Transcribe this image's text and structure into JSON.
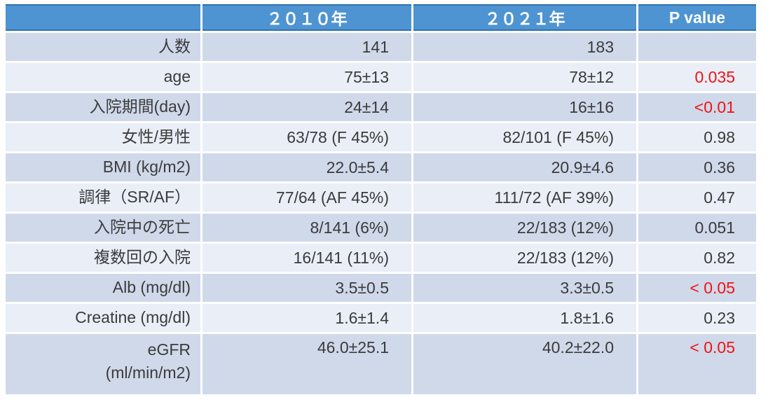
{
  "table": {
    "columns": [
      "",
      "２０１０年",
      "２０２１年",
      "P value"
    ],
    "rows": [
      {
        "label": "人数",
        "label2": "",
        "y2010": "141",
        "y2021": "183",
        "p": "",
        "p_red": false,
        "tall": false
      },
      {
        "label": "age",
        "label2": "",
        "y2010": "75±13",
        "y2021": "78±12",
        "p": "0.035",
        "p_red": true,
        "tall": false
      },
      {
        "label": "入院期間(day)",
        "label2": "",
        "y2010": "24±14",
        "y2021": "16±16",
        "p": "<0.01",
        "p_red": true,
        "tall": false
      },
      {
        "label": "女性/男性",
        "label2": "",
        "y2010": "63/78 (F 45%)",
        "y2021": "82/101 (F 45%)",
        "p": "0.98",
        "p_red": false,
        "tall": false
      },
      {
        "label": "BMI (kg/m2)",
        "label2": "",
        "y2010": "22.0±5.4",
        "y2021": "20.9±4.6",
        "p": "0.36",
        "p_red": false,
        "tall": false
      },
      {
        "label": "調律（SR/AF）",
        "label2": "",
        "y2010": "77/64 (AF 45%)",
        "y2021": "111/72 (AF 39%)",
        "p": "0.47",
        "p_red": false,
        "tall": false
      },
      {
        "label": "入院中の死亡",
        "label2": "",
        "y2010": "8/141 (6%)",
        "y2021": "22/183 (12%)",
        "p": "0.051",
        "p_red": false,
        "tall": false
      },
      {
        "label": "複数回の入院",
        "label2": "",
        "y2010": "16/141 (11%)",
        "y2021": "22/183 (12%)",
        "p": "0.82",
        "p_red": false,
        "tall": false
      },
      {
        "label": "Alb (mg/dl)",
        "label2": "",
        "y2010": "3.5±0.5",
        "y2021": "3.3±0.5",
        "p": "< 0.05",
        "p_red": true,
        "tall": false
      },
      {
        "label": "Creatine (mg/dl)",
        "label2": "",
        "y2010": "1.6±1.4",
        "y2021": "1.8±1.6",
        "p": "0.23",
        "p_red": false,
        "tall": false
      },
      {
        "label": "eGFR",
        "label2": "(ml/min/m2)",
        "y2010": "46.0±25.1",
        "y2021": "40.2±22.0",
        "p": "< 0.05",
        "p_red": true,
        "tall": true
      }
    ],
    "colors": {
      "header_bg": "#4e94d2",
      "header_border": "#2e70ae",
      "header_text": "#ffffff",
      "band_dark": "#cfd9ea",
      "band_light": "#eaeef7",
      "body_text": "#3b3b3b",
      "significant_p_text": "#f01414",
      "gridline": "#ffffff",
      "page_bg": "#ffffff"
    }
  }
}
